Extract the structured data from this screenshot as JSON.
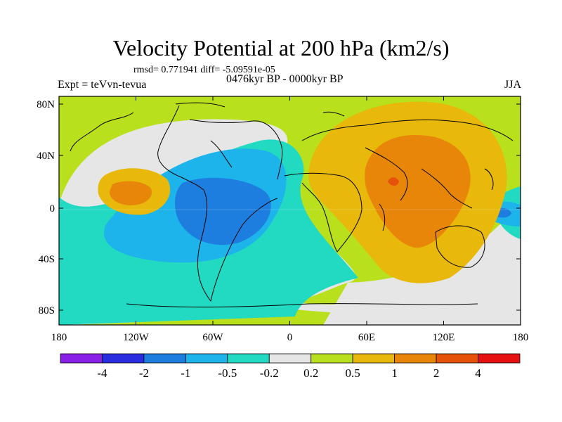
{
  "title": "Velocity Potential at 200 hPa (km2/s)",
  "stats": "rmsd= 0.771941 diff= -5.09591e-05",
  "period": "0476kyr BP - 0000kyr BP",
  "experiment": "Expt = teVvn-tevua",
  "season": "JJA",
  "lat_ticks": [
    "80N",
    "40N",
    "0",
    "40S",
    "80S"
  ],
  "lon_ticks": [
    "180",
    "120W",
    "60W",
    "0",
    "60E",
    "120E",
    "180"
  ],
  "colorbar": {
    "labels": [
      "-4",
      "-2",
      "-1",
      "-0.5",
      "-0.2",
      "0.2",
      "0.5",
      "1",
      "2",
      "4"
    ],
    "colors": [
      "#8a1fe8",
      "#2a2ce0",
      "#1e7ee0",
      "#1cb4ea",
      "#22d9c2",
      "#e6e6e6",
      "#b8e01c",
      "#e8b80a",
      "#e8860a",
      "#e6520a",
      "#e61010"
    ]
  },
  "palette": {
    "ocean_base": "#b8e01c",
    "neutral": "#e6e6e6",
    "teal": "#22d9c2",
    "cyan": "#1cb4ea",
    "blue": "#1e7ee0",
    "yellow": "#e8b80a",
    "orange": "#e8860a",
    "red": "#e6520a"
  }
}
